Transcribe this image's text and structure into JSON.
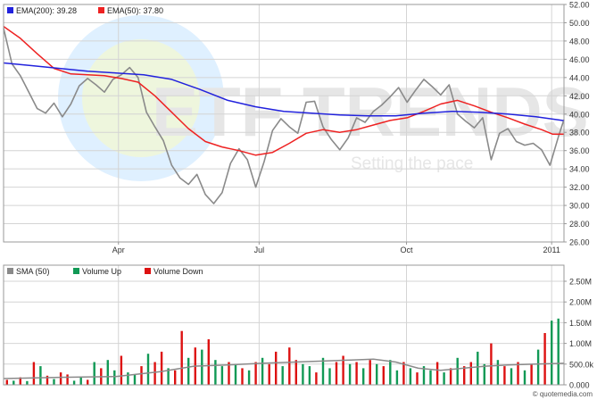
{
  "colors": {
    "price": "#8a8a8a",
    "ema200": "#2222dd",
    "ema50": "#ee2222",
    "sma50": "#8a8a8a",
    "volume_up": "#119955",
    "volume_down": "#dd1111",
    "grid": "#d4d4d4",
    "frame": "#999999",
    "watermark_text": "#e6e6e6",
    "watermark_circle": "#dff0ff",
    "watermark_circle_inner": "#eef6dd"
  },
  "watermark": {
    "brand": "ETF TRENDS",
    "tagline": "Setting the pace"
  },
  "footer": {
    "credit": "© quotemedia.com"
  },
  "chart_data": [
    {
      "type": "line",
      "name": "price-panel",
      "legend_position": "top-left",
      "grid": true,
      "x_range": [
        0,
        100
      ],
      "x_ticks": [
        {
          "label": "Apr",
          "x": 20.5
        },
        {
          "label": "Jul",
          "x": 45.6
        },
        {
          "label": "Oct",
          "x": 71.9
        },
        {
          "label": "2011",
          "x": 97.8
        }
      ],
      "ylim": [
        26,
        52
      ],
      "y_ticks": [
        "26.00",
        "28.00",
        "30.00",
        "32.00",
        "34.00",
        "36.00",
        "38.00",
        "40.00",
        "42.00",
        "44.00",
        "46.00",
        "48.00",
        "50.00",
        "52.00"
      ],
      "series": [
        {
          "name": "EMA(200)",
          "key": "ema200",
          "legend_value": "39.28",
          "x": [
            0,
            5,
            10,
            15,
            20,
            25,
            30,
            35,
            40,
            45,
            50,
            55,
            60,
            65,
            70,
            75,
            80,
            85,
            90,
            95,
            100
          ],
          "y": [
            45.6,
            45.3,
            45.0,
            44.7,
            44.5,
            44.3,
            43.8,
            42.7,
            41.5,
            40.8,
            40.3,
            40.1,
            39.9,
            39.8,
            39.8,
            40.1,
            40.3,
            40.2,
            40.0,
            39.7,
            39.28
          ]
        },
        {
          "name": "EMA(50)",
          "key": "ema50",
          "legend_value": "37.80",
          "x": [
            0,
            3,
            6,
            9,
            12,
            15,
            18,
            21,
            24,
            27,
            30,
            33,
            36,
            39,
            42,
            45,
            48,
            51,
            54,
            57,
            60,
            63,
            66,
            69,
            72,
            75,
            78,
            81,
            84,
            87,
            90,
            93,
            96,
            98,
            100
          ],
          "y": [
            49.6,
            48.3,
            46.6,
            45.0,
            44.4,
            44.3,
            44.2,
            43.9,
            43.5,
            42.0,
            40.2,
            38.4,
            37.0,
            36.4,
            36.0,
            35.5,
            35.8,
            36.8,
            37.9,
            38.3,
            38.0,
            38.3,
            38.8,
            39.3,
            39.6,
            40.3,
            41.1,
            41.5,
            40.9,
            40.2,
            39.6,
            38.9,
            38.3,
            37.8,
            37.8
          ]
        },
        {
          "name": "Price",
          "key": "price",
          "x": [
            0,
            1.5,
            3,
            4.5,
            6,
            7.5,
            9,
            10.5,
            12,
            13.5,
            15,
            16.5,
            18,
            19.5,
            21,
            22.5,
            24,
            25.5,
            27,
            28.5,
            30,
            31.5,
            33,
            34.5,
            36,
            37.5,
            39,
            40.5,
            42,
            43.5,
            45,
            46.5,
            48,
            49.5,
            51,
            52.5,
            54,
            55.5,
            57,
            58.5,
            60,
            61.5,
            63,
            64.5,
            66,
            67.5,
            69,
            70.5,
            72,
            73.5,
            75,
            76.5,
            78,
            79.5,
            81,
            82.5,
            84,
            85.5,
            87,
            88.5,
            90,
            91.5,
            93,
            94.5,
            96,
            97.5,
            99,
            100
          ],
          "y": [
            49.4,
            45.5,
            44.2,
            42.4,
            40.6,
            40.1,
            41.2,
            39.7,
            41.1,
            43.1,
            43.9,
            43.2,
            42.4,
            43.8,
            44.3,
            45.1,
            44.0,
            40.2,
            38.6,
            37.1,
            34.4,
            33.0,
            32.3,
            33.4,
            31.2,
            30.2,
            31.4,
            34.6,
            36.2,
            35.0,
            32.0,
            34.8,
            38.2,
            39.5,
            38.6,
            37.9,
            41.3,
            41.4,
            38.6,
            37.2,
            36.1,
            37.4,
            39.6,
            39.1,
            40.3,
            41.0,
            41.9,
            42.9,
            41.3,
            42.6,
            43.8,
            43.0,
            42.1,
            43.2,
            40.0,
            39.2,
            38.5,
            39.6,
            35.0,
            37.9,
            38.4,
            37.0,
            36.6,
            36.8,
            36.1,
            34.4,
            37.5,
            39.4
          ]
        }
      ]
    },
    {
      "type": "bar",
      "name": "volume-panel",
      "legend_position": "top-left",
      "grid": true,
      "x_range": [
        0,
        100
      ],
      "ylim": [
        0,
        2.5
      ],
      "y_unit": "M",
      "y_ticks": [
        "0.000",
        "500.0k",
        "1.00M",
        "1.50M",
        "2.00M",
        "2.50M"
      ],
      "legend": [
        {
          "label": "SMA (50)",
          "key": "sma50"
        },
        {
          "label": "Volume Up",
          "key": "volume_up"
        },
        {
          "label": "Volume Down",
          "key": "volume_down"
        }
      ],
      "sma50": {
        "x": [
          0,
          10,
          20,
          28,
          34,
          40,
          46,
          52,
          58,
          62,
          66,
          70,
          74,
          78,
          82,
          86,
          90,
          95,
          100
        ],
        "y": [
          0.15,
          0.18,
          0.2,
          0.32,
          0.45,
          0.48,
          0.52,
          0.55,
          0.58,
          0.6,
          0.62,
          0.55,
          0.4,
          0.35,
          0.4,
          0.45,
          0.48,
          0.5,
          0.52
        ]
      },
      "volumes": [
        {
          "x": 0.6,
          "v": 0.12,
          "d": "down"
        },
        {
          "x": 1.8,
          "v": 0.1,
          "d": "up"
        },
        {
          "x": 3.0,
          "v": 0.18,
          "d": "down"
        },
        {
          "x": 4.2,
          "v": 0.09,
          "d": "up"
        },
        {
          "x": 5.4,
          "v": 0.55,
          "d": "down"
        },
        {
          "x": 6.6,
          "v": 0.45,
          "d": "up"
        },
        {
          "x": 7.8,
          "v": 0.22,
          "d": "down"
        },
        {
          "x": 9.0,
          "v": 0.14,
          "d": "up"
        },
        {
          "x": 10.2,
          "v": 0.3,
          "d": "down"
        },
        {
          "x": 11.4,
          "v": 0.25,
          "d": "down"
        },
        {
          "x": 12.6,
          "v": 0.1,
          "d": "up"
        },
        {
          "x": 13.8,
          "v": 0.2,
          "d": "up"
        },
        {
          "x": 15.0,
          "v": 0.12,
          "d": "down"
        },
        {
          "x": 16.2,
          "v": 0.55,
          "d": "up"
        },
        {
          "x": 17.4,
          "v": 0.4,
          "d": "down"
        },
        {
          "x": 18.6,
          "v": 0.6,
          "d": "up"
        },
        {
          "x": 19.8,
          "v": 0.35,
          "d": "up"
        },
        {
          "x": 21.0,
          "v": 0.7,
          "d": "down"
        },
        {
          "x": 22.2,
          "v": 0.3,
          "d": "up"
        },
        {
          "x": 23.4,
          "v": 0.25,
          "d": "up"
        },
        {
          "x": 24.6,
          "v": 0.45,
          "d": "down"
        },
        {
          "x": 25.8,
          "v": 0.75,
          "d": "up"
        },
        {
          "x": 27.0,
          "v": 0.55,
          "d": "down"
        },
        {
          "x": 28.2,
          "v": 0.8,
          "d": "down"
        },
        {
          "x": 29.4,
          "v": 0.4,
          "d": "up"
        },
        {
          "x": 30.6,
          "v": 0.35,
          "d": "down"
        },
        {
          "x": 31.8,
          "v": 1.3,
          "d": "down"
        },
        {
          "x": 33.0,
          "v": 0.65,
          "d": "up"
        },
        {
          "x": 34.2,
          "v": 0.9,
          "d": "down"
        },
        {
          "x": 35.4,
          "v": 0.85,
          "d": "up"
        },
        {
          "x": 36.6,
          "v": 1.1,
          "d": "down"
        },
        {
          "x": 37.8,
          "v": 0.6,
          "d": "up"
        },
        {
          "x": 39.0,
          "v": 0.45,
          "d": "up"
        },
        {
          "x": 40.2,
          "v": 0.55,
          "d": "down"
        },
        {
          "x": 41.4,
          "v": 0.5,
          "d": "up"
        },
        {
          "x": 42.6,
          "v": 0.4,
          "d": "down"
        },
        {
          "x": 43.8,
          "v": 0.35,
          "d": "up"
        },
        {
          "x": 45.0,
          "v": 0.55,
          "d": "down"
        },
        {
          "x": 46.2,
          "v": 0.65,
          "d": "up"
        },
        {
          "x": 47.4,
          "v": 0.5,
          "d": "down"
        },
        {
          "x": 48.6,
          "v": 0.8,
          "d": "down"
        },
        {
          "x": 49.8,
          "v": 0.45,
          "d": "up"
        },
        {
          "x": 51.0,
          "v": 0.9,
          "d": "down"
        },
        {
          "x": 52.2,
          "v": 0.6,
          "d": "down"
        },
        {
          "x": 53.4,
          "v": 0.5,
          "d": "up"
        },
        {
          "x": 54.6,
          "v": 0.45,
          "d": "up"
        },
        {
          "x": 55.8,
          "v": 0.3,
          "d": "down"
        },
        {
          "x": 57.0,
          "v": 0.65,
          "d": "up"
        },
        {
          "x": 58.2,
          "v": 0.4,
          "d": "up"
        },
        {
          "x": 59.4,
          "v": 0.55,
          "d": "down"
        },
        {
          "x": 60.6,
          "v": 0.7,
          "d": "down"
        },
        {
          "x": 61.8,
          "v": 0.5,
          "d": "up"
        },
        {
          "x": 63.0,
          "v": 0.55,
          "d": "down"
        },
        {
          "x": 64.2,
          "v": 0.4,
          "d": "up"
        },
        {
          "x": 65.4,
          "v": 0.6,
          "d": "down"
        },
        {
          "x": 66.6,
          "v": 0.5,
          "d": "up"
        },
        {
          "x": 67.8,
          "v": 0.45,
          "d": "down"
        },
        {
          "x": 69.0,
          "v": 0.6,
          "d": "up"
        },
        {
          "x": 70.2,
          "v": 0.35,
          "d": "up"
        },
        {
          "x": 71.4,
          "v": 0.55,
          "d": "down"
        },
        {
          "x": 72.6,
          "v": 0.4,
          "d": "up"
        },
        {
          "x": 73.8,
          "v": 0.3,
          "d": "down"
        },
        {
          "x": 75.0,
          "v": 0.45,
          "d": "up"
        },
        {
          "x": 76.2,
          "v": 0.35,
          "d": "up"
        },
        {
          "x": 77.4,
          "v": 0.55,
          "d": "down"
        },
        {
          "x": 78.6,
          "v": 0.3,
          "d": "up"
        },
        {
          "x": 79.8,
          "v": 0.4,
          "d": "down"
        },
        {
          "x": 81.0,
          "v": 0.65,
          "d": "up"
        },
        {
          "x": 82.2,
          "v": 0.45,
          "d": "down"
        },
        {
          "x": 83.4,
          "v": 0.55,
          "d": "down"
        },
        {
          "x": 84.6,
          "v": 0.8,
          "d": "up"
        },
        {
          "x": 85.8,
          "v": 0.5,
          "d": "up"
        },
        {
          "x": 87.0,
          "v": 1.0,
          "d": "down"
        },
        {
          "x": 88.2,
          "v": 0.6,
          "d": "up"
        },
        {
          "x": 89.4,
          "v": 0.45,
          "d": "down"
        },
        {
          "x": 90.6,
          "v": 0.4,
          "d": "up"
        },
        {
          "x": 91.8,
          "v": 0.55,
          "d": "down"
        },
        {
          "x": 93.0,
          "v": 0.35,
          "d": "up"
        },
        {
          "x": 94.2,
          "v": 0.5,
          "d": "down"
        },
        {
          "x": 95.4,
          "v": 0.85,
          "d": "up"
        },
        {
          "x": 96.6,
          "v": 1.25,
          "d": "down"
        },
        {
          "x": 97.8,
          "v": 1.55,
          "d": "up"
        },
        {
          "x": 99.0,
          "v": 1.6,
          "d": "up"
        }
      ]
    }
  ]
}
